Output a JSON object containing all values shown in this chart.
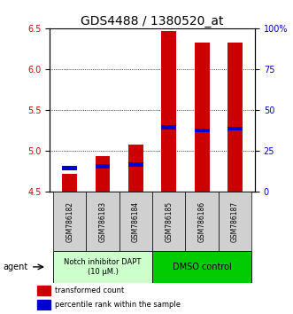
{
  "title": "GDS4488 / 1380520_at",
  "samples": [
    "GSM786182",
    "GSM786183",
    "GSM786184",
    "GSM786185",
    "GSM786186",
    "GSM786187"
  ],
  "bar_bottom": 4.5,
  "bar_tops": [
    4.72,
    4.93,
    5.08,
    6.47,
    6.32,
    6.32
  ],
  "blue_markers": [
    4.79,
    4.81,
    4.83,
    5.29,
    5.25,
    5.27
  ],
  "ylim_left": [
    4.5,
    6.5
  ],
  "yticks_left": [
    4.5,
    5.0,
    5.5,
    6.0,
    6.5
  ],
  "yticks_right": [
    0,
    25,
    50,
    75,
    100
  ],
  "yright_labels": [
    "0",
    "25",
    "50",
    "75",
    "100%"
  ],
  "bar_color": "#cc0000",
  "blue_color": "#0000cc",
  "group1_color": "#ccffcc",
  "group2_color": "#00cc00",
  "group1_label": "Notch inhibitor DAPT\n(10 μM.)",
  "group2_label": "DMSO control",
  "group1_indices": [
    0,
    1,
    2
  ],
  "group2_indices": [
    3,
    4,
    5
  ],
  "legend_red": "transformed count",
  "legend_blue": "percentile rank within the sample",
  "agent_label": "agent",
  "bar_width": 0.45,
  "bar_color_hex": "#cc0000",
  "blue_color_hex": "#0000cc",
  "title_fontsize": 10,
  "tick_fontsize": 7,
  "sample_fontsize": 5.5,
  "agent_fontsize": 7,
  "legend_fontsize": 6
}
